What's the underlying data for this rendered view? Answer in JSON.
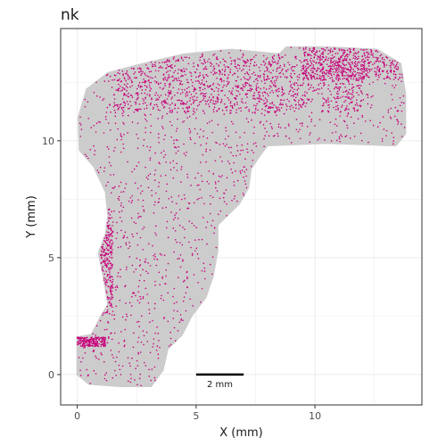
{
  "colors": {
    "tissue": "#cccccc",
    "cell": "#c8007a",
    "grid": "#ebebeb",
    "panel_border": "#333333",
    "scale_bar": "#000000"
  },
  "chart_data": {
    "type": "scatter",
    "title": "nk",
    "xlabel": "X (mm)",
    "ylabel": "Y (mm)",
    "xlim": [
      -0.7,
      14.5
    ],
    "ylim": [
      -1.3,
      14.8
    ],
    "xticks": [
      0,
      5,
      10
    ],
    "yticks": [
      0,
      5,
      10
    ],
    "xtick_labels": [
      "0",
      "5",
      "10"
    ],
    "ytick_labels": [
      "0",
      "5",
      "10"
    ],
    "grid": true,
    "legend": "none",
    "scale_bar": {
      "length_mm": 2,
      "label": "2 mm",
      "x_start": 5.0,
      "y": 0.0
    },
    "series": [
      {
        "role": "tissue-background",
        "outline": [
          [
            0.0,
            0.0
          ],
          [
            0.0,
            1.6
          ],
          [
            0.6,
            1.7
          ],
          [
            1.0,
            2.5
          ],
          [
            1.3,
            3.0
          ],
          [
            1.1,
            4.2
          ],
          [
            0.9,
            5.2
          ],
          [
            1.2,
            6.0
          ],
          [
            1.3,
            6.8
          ],
          [
            1.2,
            7.8
          ],
          [
            0.7,
            8.9
          ],
          [
            0.1,
            9.6
          ],
          [
            0.05,
            11.0
          ],
          [
            0.4,
            12.2
          ],
          [
            1.3,
            12.9
          ],
          [
            2.8,
            13.3
          ],
          [
            4.5,
            13.7
          ],
          [
            6.5,
            13.9
          ],
          [
            8.5,
            13.7
          ],
          [
            8.8,
            14.0
          ],
          [
            10.5,
            14.0
          ],
          [
            12.6,
            13.9
          ],
          [
            13.6,
            13.3
          ],
          [
            13.8,
            12.0
          ],
          [
            13.8,
            10.3
          ],
          [
            13.4,
            9.8
          ],
          [
            10.5,
            9.9
          ],
          [
            8.0,
            9.8
          ],
          [
            7.7,
            9.4
          ],
          [
            7.3,
            8.8
          ],
          [
            7.2,
            8.0
          ],
          [
            6.8,
            7.3
          ],
          [
            6.4,
            6.9
          ],
          [
            5.9,
            6.4
          ],
          [
            5.9,
            5.3
          ],
          [
            5.7,
            4.2
          ],
          [
            5.4,
            3.3
          ],
          [
            4.8,
            2.5
          ],
          [
            4.4,
            1.7
          ],
          [
            3.8,
            1.1
          ],
          [
            3.6,
            0.2
          ],
          [
            3.1,
            -0.5
          ],
          [
            1.8,
            -0.5
          ],
          [
            0.5,
            -0.4
          ]
        ]
      },
      {
        "role": "nk-cells",
        "count": 3200
      }
    ]
  }
}
